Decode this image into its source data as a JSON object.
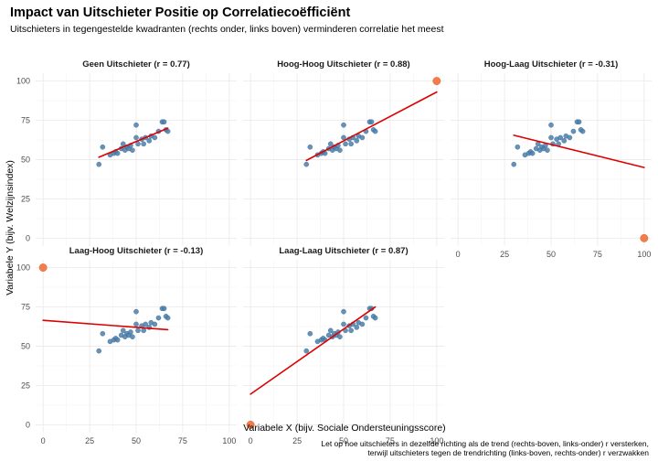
{
  "chart_data": {
    "type": "scatter",
    "title": "Impact van Uitschieter Positie op Correlatiecoëfficiënt",
    "subtitle": "Uitschieters in tegengestelde kwadranten (rechts onder, links boven) verminderen correlatie het meest",
    "xlabel": "Variabele X (bijv. Sociale Ondersteuningsscore)",
    "ylabel": "Variabele Y (bijv. Welzijnsindex)",
    "caption_lines": [
      "Let op hoe uitschieters in dezelfde richting als de trend (rechts-boven, links-onder) r versterken,",
      "terwijl uitschieters tegen de trendrichting (links-boven, rechts-onder) r verzwakken"
    ],
    "xlim": [
      -4,
      104
    ],
    "ylim": [
      -5,
      105
    ],
    "x_ticks": [
      0,
      25,
      50,
      75,
      100
    ],
    "y_ticks": [
      0,
      25,
      50,
      75,
      100
    ],
    "grid": true,
    "colors": {
      "points": "#4a7fab",
      "outlier": "#f47b4a",
      "line": "#dd0000"
    },
    "base_points": [
      [
        30,
        47
      ],
      [
        32,
        58
      ],
      [
        36,
        53
      ],
      [
        38,
        54
      ],
      [
        39,
        55
      ],
      [
        40,
        54
      ],
      [
        42,
        57
      ],
      [
        43,
        60
      ],
      [
        44,
        56
      ],
      [
        45,
        58
      ],
      [
        46,
        57
      ],
      [
        47,
        59
      ],
      [
        48,
        56
      ],
      [
        50,
        64
      ],
      [
        50,
        72
      ],
      [
        51,
        60
      ],
      [
        53,
        63
      ],
      [
        54,
        60
      ],
      [
        55,
        64
      ],
      [
        57,
        62
      ],
      [
        58,
        65
      ],
      [
        60,
        64
      ],
      [
        62,
        68
      ],
      [
        64,
        74
      ],
      [
        65,
        74
      ],
      [
        66,
        69
      ],
      [
        67,
        68
      ]
    ],
    "panels": [
      {
        "name": "Geen Uitschieter (r = 0.77)",
        "outlier": null,
        "fit": [
          [
            30,
            51.5
          ],
          [
            67,
            70
          ]
        ]
      },
      {
        "name": "Hoog-Hoog Uitschieter (r = 0.88)",
        "outlier": [
          100,
          100
        ],
        "fit": [
          [
            30,
            49.5
          ],
          [
            100,
            93
          ]
        ]
      },
      {
        "name": "Hoog-Laag Uitschieter (r = -0.31)",
        "outlier": [
          100,
          0
        ],
        "fit": [
          [
            30,
            65.5
          ],
          [
            100,
            45
          ]
        ]
      },
      {
        "name": "Laag-Hoog Uitschieter (r = -0.13)",
        "outlier": [
          0,
          100
        ],
        "fit": [
          [
            0,
            66.5
          ],
          [
            67,
            60.5
          ]
        ]
      },
      {
        "name": "Laag-Laag Uitschieter (r = 0.87)",
        "outlier": [
          0,
          0
        ],
        "fit": [
          [
            0,
            19.5
          ],
          [
            67,
            75
          ]
        ]
      }
    ]
  }
}
